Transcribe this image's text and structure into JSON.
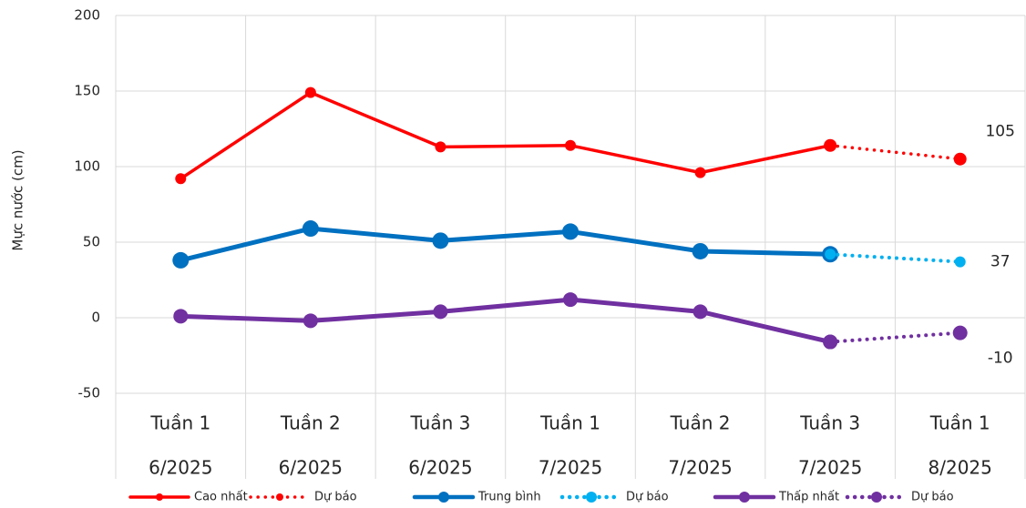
{
  "chart_data": {
    "type": "line",
    "y_label": "Mực nước (cm)",
    "categories": [
      [
        "Tuần 1",
        "6/2025"
      ],
      [
        "Tuần 2",
        "6/2025"
      ],
      [
        "Tuần 3",
        "6/2025"
      ],
      [
        "Tuần 1",
        "7/2025"
      ],
      [
        "Tuần 2",
        "7/2025"
      ],
      [
        "Tuần 3",
        "7/2025"
      ],
      [
        "Tuần 1",
        "8/2025"
      ]
    ],
    "series": [
      {
        "name": "Cao nhất",
        "color": "#ff0000",
        "style": "solid",
        "values": [
          92,
          149,
          113,
          114,
          96,
          114,
          null
        ]
      },
      {
        "name": "Dự báo",
        "color": "#ff0000",
        "style": "dotted",
        "show_last_label": true,
        "values": [
          null,
          null,
          null,
          null,
          null,
          114,
          105
        ]
      },
      {
        "name": "Trung bình",
        "color": "#0070c0",
        "style": "solid",
        "values": [
          38,
          59,
          51,
          57,
          44,
          42,
          null
        ]
      },
      {
        "name": "Dự báo",
        "color": "#00b0f0",
        "style": "dotted",
        "show_last_label": true,
        "values": [
          null,
          null,
          null,
          null,
          null,
          42,
          37
        ]
      },
      {
        "name": "Thấp nhất",
        "color": "#7030a0",
        "style": "solid",
        "values": [
          1,
          -2,
          4,
          12,
          4,
          -16,
          null
        ]
      },
      {
        "name": "Dự báo",
        "color": "#7030a0",
        "style": "dotted",
        "show_last_label": true,
        "values": [
          null,
          null,
          null,
          null,
          null,
          -16,
          -10
        ]
      }
    ],
    "ylim": [
      -50,
      200
    ],
    "yticks": [
      -50,
      0,
      50,
      100,
      150,
      200
    ],
    "grid": true,
    "legend": "bottom"
  }
}
